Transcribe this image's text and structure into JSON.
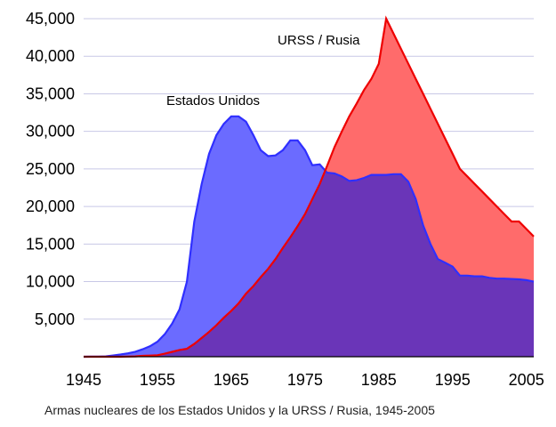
{
  "chart_data": {
    "type": "area",
    "title": "Armas nucleares de los Estados Unidos y la URSS / Rusia, 1945-2005",
    "xlabel": "",
    "ylabel": "",
    "xlim": [
      1945,
      2006
    ],
    "ylim": [
      0,
      45000
    ],
    "grid": true,
    "x_ticks": [
      1945,
      1955,
      1965,
      1975,
      1985,
      1995,
      2005
    ],
    "x_tick_labels": [
      "1945",
      "1955",
      "1965",
      "1975",
      "1985",
      "1995",
      "2005"
    ],
    "y_ticks": [
      5000,
      10000,
      15000,
      20000,
      25000,
      30000,
      35000,
      40000,
      45000
    ],
    "y_tick_labels": [
      "5,000",
      "10,000",
      "15,000",
      "20,000",
      "25,000",
      "30,000",
      "35,000",
      "40,000",
      "45,000"
    ],
    "colors": {
      "overlap": "#6a35b8",
      "background": "#ffffff",
      "grid": "#c8c8e6"
    },
    "series": [
      {
        "name": "Estados Unidos",
        "label": "Estados Unidos",
        "fill": "#6b6bff",
        "stroke": "#2f2fff",
        "x": [
          1945,
          1946,
          1947,
          1948,
          1949,
          1950,
          1951,
          1952,
          1953,
          1954,
          1955,
          1956,
          1957,
          1958,
          1959,
          1960,
          1961,
          1962,
          1963,
          1964,
          1965,
          1966,
          1967,
          1968,
          1969,
          1970,
          1971,
          1972,
          1973,
          1974,
          1975,
          1976,
          1977,
          1978,
          1979,
          1980,
          1981,
          1982,
          1983,
          1984,
          1985,
          1986,
          1987,
          1988,
          1989,
          1990,
          1991,
          1992,
          1993,
          1994,
          1995,
          1996,
          1997,
          1998,
          1999,
          2000,
          2001,
          2002,
          2003,
          2004,
          2005,
          2006
        ],
        "values": [
          2,
          9,
          13,
          50,
          170,
          300,
          450,
          660,
          1000,
          1400,
          2000,
          3000,
          4400,
          6300,
          10000,
          18000,
          23000,
          27000,
          29500,
          31000,
          32000,
          32000,
          31300,
          29500,
          27500,
          26700,
          26800,
          27500,
          28800,
          28800,
          27500,
          25500,
          25600,
          24500,
          24400,
          24000,
          23400,
          23500,
          23800,
          24200,
          24200,
          24200,
          24300,
          24300,
          23300,
          21000,
          17500,
          15000,
          13000,
          12500,
          12000,
          10800,
          10800,
          10700,
          10700,
          10500,
          10400,
          10400,
          10350,
          10300,
          10200,
          10000
        ]
      },
      {
        "name": "URSS / Rusia",
        "label": "URSS / Rusia",
        "fill": "#ff6b6b",
        "stroke": "#ee0000",
        "x": [
          1945,
          1949,
          1950,
          1951,
          1952,
          1953,
          1954,
          1955,
          1956,
          1957,
          1958,
          1959,
          1960,
          1961,
          1962,
          1963,
          1964,
          1965,
          1966,
          1967,
          1968,
          1969,
          1970,
          1971,
          1972,
          1973,
          1974,
          1975,
          1976,
          1977,
          1978,
          1979,
          1980,
          1981,
          1982,
          1983,
          1984,
          1985,
          1986,
          1987,
          1988,
          1989,
          1990,
          1991,
          1992,
          1993,
          1994,
          1995,
          1996,
          1997,
          1998,
          1999,
          2000,
          2001,
          2002,
          2003,
          2004,
          2005,
          2006
        ],
        "values": [
          0,
          1,
          5,
          25,
          50,
          120,
          150,
          200,
          400,
          650,
          900,
          1050,
          1700,
          2500,
          3300,
          4200,
          5200,
          6100,
          7100,
          8400,
          9400,
          10600,
          11700,
          13000,
          14500,
          15900,
          17400,
          19000,
          21000,
          23000,
          25400,
          27900,
          30000,
          32000,
          33700,
          35500,
          37000,
          39000,
          45000,
          43000,
          41000,
          39000,
          37000,
          35000,
          33000,
          31000,
          29000,
          27000,
          25000,
          24000,
          23000,
          22000,
          21000,
          20000,
          19000,
          18000,
          18000,
          17000,
          16000
        ]
      }
    ]
  }
}
